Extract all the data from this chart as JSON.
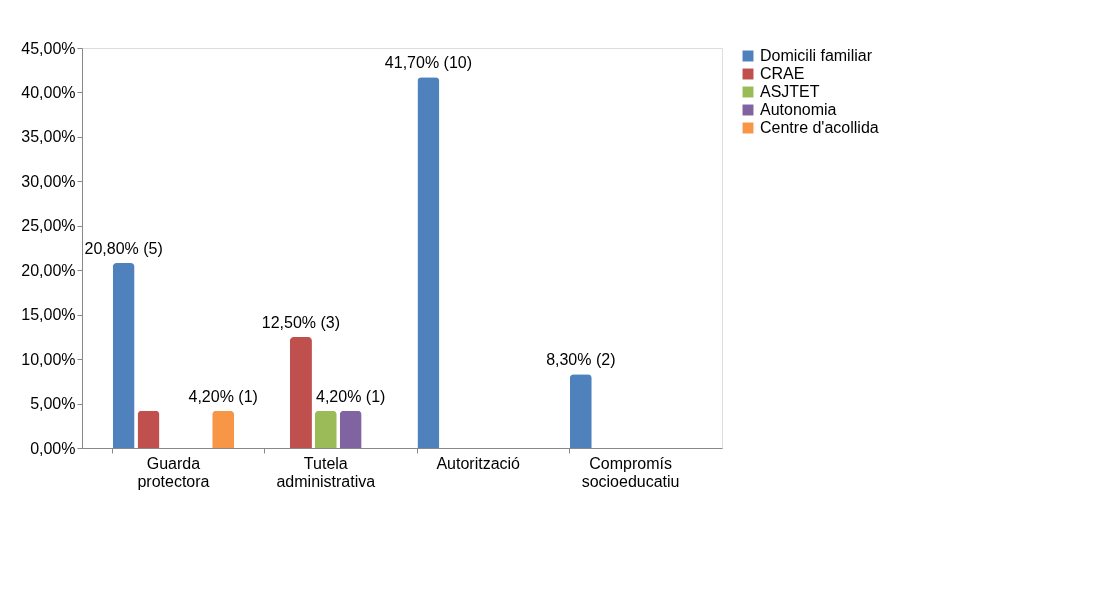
{
  "chart_data": {
    "type": "bar",
    "categories": [
      "Guarda protectora",
      "Tutela administrativa",
      "Autorització",
      "Compromís socioeducatiu"
    ],
    "series": [
      {
        "name": "Domicili familiar",
        "color": "#4f81bd",
        "values": [
          20.8,
          0,
          41.7,
          8.3
        ],
        "value_labels": [
          "20,80% (5)",
          null,
          "41,70% (10)",
          "8,30% (2)"
        ]
      },
      {
        "name": "CRAE",
        "color": "#c0504d",
        "values": [
          4.2,
          12.5,
          0,
          0
        ],
        "value_labels": [
          null,
          "12,50% (3)",
          null,
          null
        ]
      },
      {
        "name": "ASJTET",
        "color": "#9bbb59",
        "values": [
          0,
          4.2,
          0,
          0
        ],
        "value_labels": [
          null,
          null,
          null,
          null
        ]
      },
      {
        "name": "Autonomia",
        "color": "#8064a2",
        "values": [
          0,
          4.2,
          0,
          0
        ],
        "value_labels": [
          null,
          "4,20% (1)",
          null,
          null
        ]
      },
      {
        "name": "Centre d'acollida",
        "color": "#f79646",
        "values": [
          4.2,
          0,
          0,
          0
        ],
        "value_labels": [
          "4,20% (1)",
          null,
          null,
          null
        ]
      }
    ],
    "ylim": [
      0,
      45
    ],
    "yticks": [
      {
        "value": 0,
        "label": "0,00%"
      },
      {
        "value": 5,
        "label": "5,00%"
      },
      {
        "value": 10,
        "label": "10,00%"
      },
      {
        "value": 15,
        "label": "15,00%"
      },
      {
        "value": 20,
        "label": "20,00%"
      },
      {
        "value": 25,
        "label": "25,00%"
      },
      {
        "value": 30,
        "label": "30,00%"
      },
      {
        "value": 35,
        "label": "35,00%"
      },
      {
        "value": 40,
        "label": "40,00%"
      },
      {
        "value": 45,
        "label": "45,00%"
      }
    ],
    "grid": false,
    "legend": "right"
  }
}
